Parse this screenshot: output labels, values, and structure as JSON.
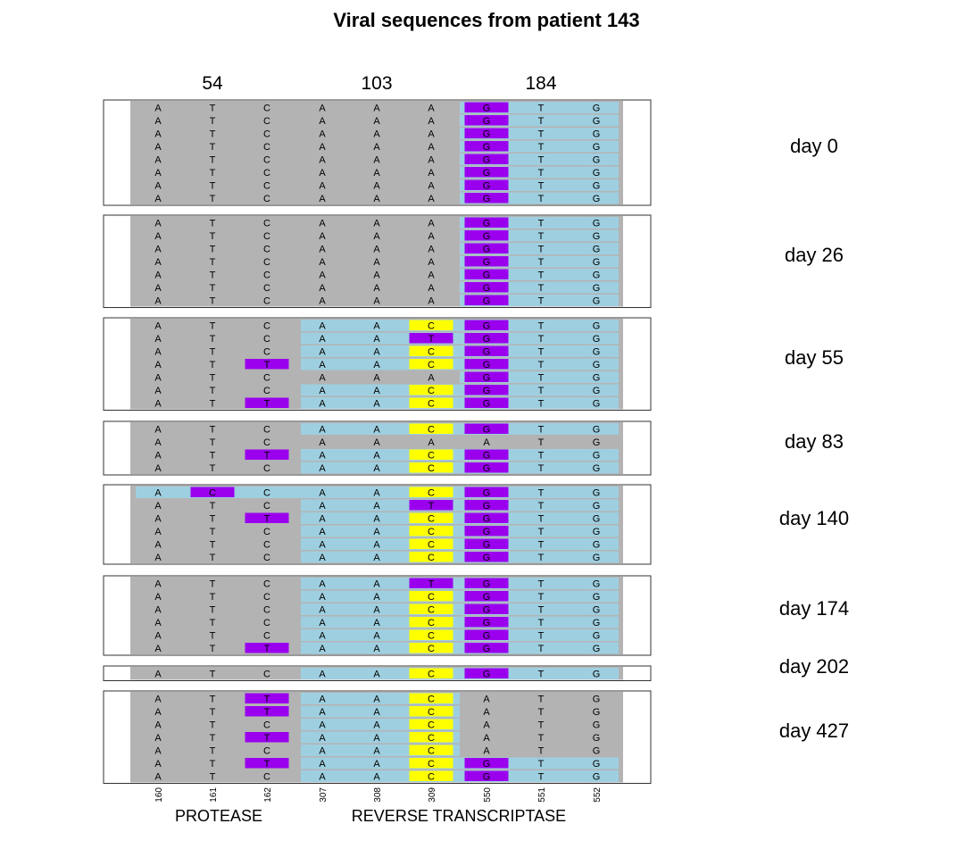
{
  "title": "Viral sequences from patient 143",
  "codons": [
    "54",
    "103",
    "184"
  ],
  "positions": [
    "160",
    "161",
    "162",
    "307",
    "308",
    "309",
    "550",
    "551",
    "552"
  ],
  "genes": [
    "PROTEASE",
    "REVERSE TRANSCRIPTASE"
  ],
  "colors": {
    "reference_gray": "#b3b3b3",
    "mutated_codon_blue": "#9ecfe0",
    "purple": "#9a00ee",
    "yellow": "#ffff00",
    "border": "#333333"
  },
  "legend_of_cell_codes": "0 = unchanged nucleotide, 1 = highlighted purple, 2 = highlighted yellow",
  "panels": [
    {
      "day": "day 0",
      "rows": [
        {
          "seq": "ATCAAAGTG",
          "marks": [
            0,
            0,
            0,
            0,
            0,
            0,
            1,
            0,
            0
          ],
          "codonBlue": [
            false,
            false,
            true
          ]
        },
        {
          "seq": "ATCAAAGTG",
          "marks": [
            0,
            0,
            0,
            0,
            0,
            0,
            1,
            0,
            0
          ],
          "codonBlue": [
            false,
            false,
            true
          ]
        },
        {
          "seq": "ATCAAAGTG",
          "marks": [
            0,
            0,
            0,
            0,
            0,
            0,
            1,
            0,
            0
          ],
          "codonBlue": [
            false,
            false,
            true
          ]
        },
        {
          "seq": "ATCAAAGTG",
          "marks": [
            0,
            0,
            0,
            0,
            0,
            0,
            1,
            0,
            0
          ],
          "codonBlue": [
            false,
            false,
            true
          ]
        },
        {
          "seq": "ATCAAAGTG",
          "marks": [
            0,
            0,
            0,
            0,
            0,
            0,
            1,
            0,
            0
          ],
          "codonBlue": [
            false,
            false,
            true
          ]
        },
        {
          "seq": "ATCAAAGTG",
          "marks": [
            0,
            0,
            0,
            0,
            0,
            0,
            1,
            0,
            0
          ],
          "codonBlue": [
            false,
            false,
            true
          ]
        },
        {
          "seq": "ATCAAAGTG",
          "marks": [
            0,
            0,
            0,
            0,
            0,
            0,
            1,
            0,
            0
          ],
          "codonBlue": [
            false,
            false,
            true
          ]
        },
        {
          "seq": "ATCAAAGTG",
          "marks": [
            0,
            0,
            0,
            0,
            0,
            0,
            1,
            0,
            0
          ],
          "codonBlue": [
            false,
            false,
            true
          ]
        }
      ]
    },
    {
      "day": "day 26",
      "rows": [
        {
          "seq": "ATCAAAGTG",
          "marks": [
            0,
            0,
            0,
            0,
            0,
            0,
            1,
            0,
            0
          ],
          "codonBlue": [
            false,
            false,
            true
          ]
        },
        {
          "seq": "ATCAAAGTG",
          "marks": [
            0,
            0,
            0,
            0,
            0,
            0,
            1,
            0,
            0
          ],
          "codonBlue": [
            false,
            false,
            true
          ]
        },
        {
          "seq": "ATCAAAGTG",
          "marks": [
            0,
            0,
            0,
            0,
            0,
            0,
            1,
            0,
            0
          ],
          "codonBlue": [
            false,
            false,
            true
          ]
        },
        {
          "seq": "ATCAAAGTG",
          "marks": [
            0,
            0,
            0,
            0,
            0,
            0,
            1,
            0,
            0
          ],
          "codonBlue": [
            false,
            false,
            true
          ]
        },
        {
          "seq": "ATCAAAGTG",
          "marks": [
            0,
            0,
            0,
            0,
            0,
            0,
            1,
            0,
            0
          ],
          "codonBlue": [
            false,
            false,
            true
          ]
        },
        {
          "seq": "ATCAAAGTG",
          "marks": [
            0,
            0,
            0,
            0,
            0,
            0,
            1,
            0,
            0
          ],
          "codonBlue": [
            false,
            false,
            true
          ]
        },
        {
          "seq": "ATCAAAGTG",
          "marks": [
            0,
            0,
            0,
            0,
            0,
            0,
            1,
            0,
            0
          ],
          "codonBlue": [
            false,
            false,
            true
          ]
        }
      ]
    },
    {
      "day": "day 55",
      "rows": [
        {
          "seq": "ATCAACGTG",
          "marks": [
            0,
            0,
            0,
            0,
            0,
            2,
            1,
            0,
            0
          ],
          "codonBlue": [
            false,
            true,
            true
          ]
        },
        {
          "seq": "ATCAATGTG",
          "marks": [
            0,
            0,
            0,
            0,
            0,
            1,
            1,
            0,
            0
          ],
          "codonBlue": [
            false,
            true,
            true
          ]
        },
        {
          "seq": "ATCAACGTG",
          "marks": [
            0,
            0,
            0,
            0,
            0,
            2,
            1,
            0,
            0
          ],
          "codonBlue": [
            false,
            true,
            true
          ]
        },
        {
          "seq": "ATTAACGTG",
          "marks": [
            0,
            0,
            1,
            0,
            0,
            2,
            1,
            0,
            0
          ],
          "codonBlue": [
            false,
            true,
            true
          ]
        },
        {
          "seq": "ATCAAAGTG",
          "marks": [
            0,
            0,
            0,
            0,
            0,
            0,
            1,
            0,
            0
          ],
          "codonBlue": [
            false,
            false,
            true
          ]
        },
        {
          "seq": "ATCAACGTG",
          "marks": [
            0,
            0,
            0,
            0,
            0,
            2,
            1,
            0,
            0
          ],
          "codonBlue": [
            false,
            true,
            true
          ]
        },
        {
          "seq": "ATTAACGTG",
          "marks": [
            0,
            0,
            1,
            0,
            0,
            2,
            1,
            0,
            0
          ],
          "codonBlue": [
            false,
            true,
            true
          ]
        }
      ]
    },
    {
      "day": "day 83",
      "rows": [
        {
          "seq": "ATCAACGTG",
          "marks": [
            0,
            0,
            0,
            0,
            0,
            2,
            1,
            0,
            0
          ],
          "codonBlue": [
            false,
            true,
            true
          ]
        },
        {
          "seq": "ATCAAAATG",
          "marks": [
            0,
            0,
            0,
            0,
            0,
            0,
            0,
            0,
            0
          ],
          "codonBlue": [
            false,
            false,
            false
          ]
        },
        {
          "seq": "ATTAACGTG",
          "marks": [
            0,
            0,
            1,
            0,
            0,
            2,
            1,
            0,
            0
          ],
          "codonBlue": [
            false,
            true,
            true
          ]
        },
        {
          "seq": "ATCAACGTG",
          "marks": [
            0,
            0,
            0,
            0,
            0,
            2,
            1,
            0,
            0
          ],
          "codonBlue": [
            false,
            true,
            true
          ]
        }
      ]
    },
    {
      "day": "day 140",
      "rows": [
        {
          "seq": "ACCAACGTG",
          "marks": [
            0,
            1,
            0,
            0,
            0,
            2,
            1,
            0,
            0
          ],
          "codonBlue": [
            true,
            true,
            true
          ]
        },
        {
          "seq": "ATCAATGTG",
          "marks": [
            0,
            0,
            0,
            0,
            0,
            1,
            1,
            0,
            0
          ],
          "codonBlue": [
            false,
            true,
            true
          ]
        },
        {
          "seq": "ATTAACGTG",
          "marks": [
            0,
            0,
            1,
            0,
            0,
            2,
            1,
            0,
            0
          ],
          "codonBlue": [
            false,
            true,
            true
          ]
        },
        {
          "seq": "ATCAACGTG",
          "marks": [
            0,
            0,
            0,
            0,
            0,
            2,
            1,
            0,
            0
          ],
          "codonBlue": [
            false,
            true,
            true
          ]
        },
        {
          "seq": "ATCAACGTG",
          "marks": [
            0,
            0,
            0,
            0,
            0,
            2,
            1,
            0,
            0
          ],
          "codonBlue": [
            false,
            true,
            true
          ]
        },
        {
          "seq": "ATCAACGTG",
          "marks": [
            0,
            0,
            0,
            0,
            0,
            2,
            1,
            0,
            0
          ],
          "codonBlue": [
            false,
            true,
            true
          ]
        }
      ]
    },
    {
      "day": "day 174",
      "rows": [
        {
          "seq": "ATCAATGTG",
          "marks": [
            0,
            0,
            0,
            0,
            0,
            1,
            1,
            0,
            0
          ],
          "codonBlue": [
            false,
            true,
            true
          ]
        },
        {
          "seq": "ATCAACGTG",
          "marks": [
            0,
            0,
            0,
            0,
            0,
            2,
            1,
            0,
            0
          ],
          "codonBlue": [
            false,
            true,
            true
          ]
        },
        {
          "seq": "ATCAACGTG",
          "marks": [
            0,
            0,
            0,
            0,
            0,
            2,
            1,
            0,
            0
          ],
          "codonBlue": [
            false,
            true,
            true
          ]
        },
        {
          "seq": "ATCAACGTG",
          "marks": [
            0,
            0,
            0,
            0,
            0,
            2,
            1,
            0,
            0
          ],
          "codonBlue": [
            false,
            true,
            true
          ]
        },
        {
          "seq": "ATCAACGTG",
          "marks": [
            0,
            0,
            0,
            0,
            0,
            2,
            1,
            0,
            0
          ],
          "codonBlue": [
            false,
            true,
            true
          ]
        },
        {
          "seq": "ATTAACGTG",
          "marks": [
            0,
            0,
            1,
            0,
            0,
            2,
            1,
            0,
            0
          ],
          "codonBlue": [
            false,
            true,
            true
          ]
        }
      ]
    },
    {
      "day": "day 202",
      "rows": [
        {
          "seq": "ATCAACGTG",
          "marks": [
            0,
            0,
            0,
            0,
            0,
            2,
            1,
            0,
            0
          ],
          "codonBlue": [
            false,
            true,
            true
          ]
        }
      ]
    },
    {
      "day": "day 427",
      "rows": [
        {
          "seq": "ATTAACATG",
          "marks": [
            0,
            0,
            1,
            0,
            0,
            2,
            0,
            0,
            0
          ],
          "codonBlue": [
            false,
            true,
            false
          ]
        },
        {
          "seq": "ATTAACATG",
          "marks": [
            0,
            0,
            1,
            0,
            0,
            2,
            0,
            0,
            0
          ],
          "codonBlue": [
            false,
            true,
            false
          ]
        },
        {
          "seq": "ATCAACATG",
          "marks": [
            0,
            0,
            0,
            0,
            0,
            2,
            0,
            0,
            0
          ],
          "codonBlue": [
            false,
            true,
            false
          ]
        },
        {
          "seq": "ATTAACATG",
          "marks": [
            0,
            0,
            1,
            0,
            0,
            2,
            0,
            0,
            0
          ],
          "codonBlue": [
            false,
            true,
            false
          ]
        },
        {
          "seq": "ATCAACATG",
          "marks": [
            0,
            0,
            0,
            0,
            0,
            2,
            0,
            0,
            0
          ],
          "codonBlue": [
            false,
            true,
            false
          ]
        },
        {
          "seq": "ATTAACGTG",
          "marks": [
            0,
            0,
            1,
            0,
            0,
            2,
            1,
            0,
            0
          ],
          "codonBlue": [
            false,
            true,
            true
          ]
        },
        {
          "seq": "ATCAACGTG",
          "marks": [
            0,
            0,
            0,
            0,
            0,
            2,
            1,
            0,
            0
          ],
          "codonBlue": [
            false,
            true,
            true
          ]
        }
      ]
    }
  ]
}
